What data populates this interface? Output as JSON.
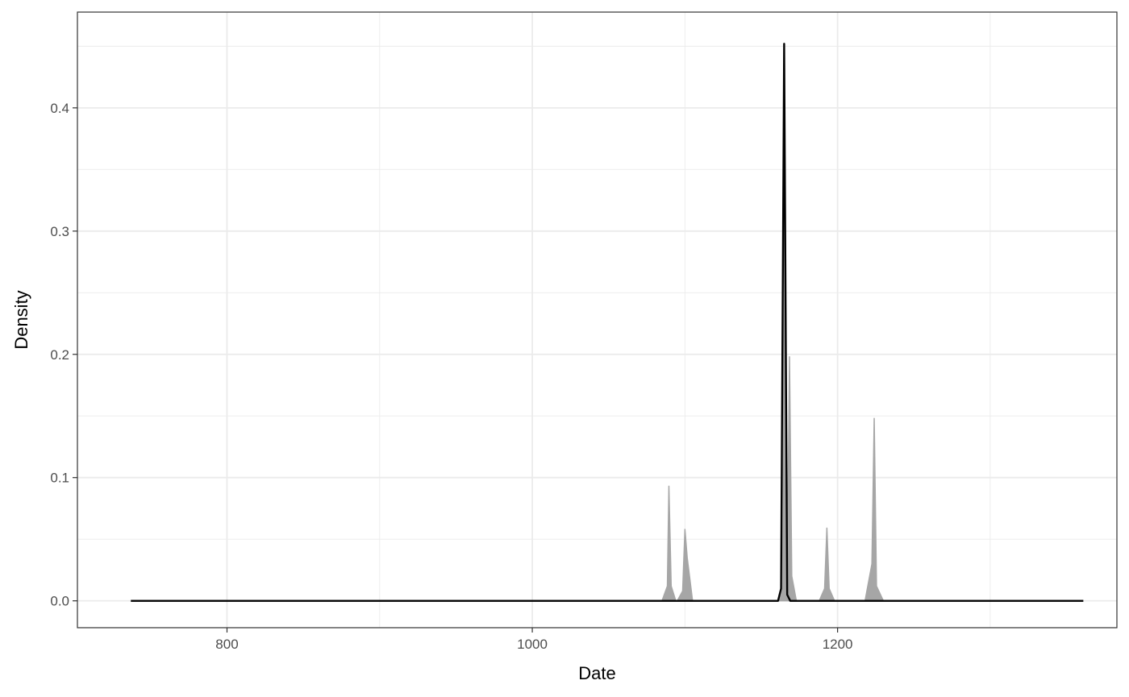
{
  "chart_data": {
    "type": "area",
    "title": "",
    "xlabel": "Date",
    "ylabel": "Density",
    "xlim": [
      702,
      1383
    ],
    "ylim": [
      -0.0218,
      0.4777
    ],
    "x_ticks": [
      800,
      1000,
      1200
    ],
    "y_ticks": [
      0.0,
      0.1,
      0.2,
      0.3,
      0.4
    ],
    "x_tick_labels": [
      "800",
      "1000",
      "1200"
    ],
    "y_tick_labels": [
      "0.0",
      "0.1",
      "0.2",
      "0.3",
      "0.4"
    ],
    "grid": true,
    "legend": "none",
    "colors": {
      "peaks": "#a6a6a6",
      "line": "#000000",
      "grid": "#ebebeb",
      "border": "#333333"
    },
    "peak_series": [
      {
        "x": [
          1085,
          1088.5,
          1089.5,
          1091,
          1094
        ],
        "y": [
          0,
          0.012,
          0.093,
          0.012,
          0
        ]
      },
      {
        "x": [
          1095,
          1098.5,
          1100,
          1101.5,
          1105
        ],
        "y": [
          0,
          0.008,
          0.058,
          0.035,
          0
        ]
      },
      {
        "x": [
          1161,
          1164,
          1165.5,
          1167,
          1168.5,
          1170,
          1173
        ],
        "y": [
          0,
          0.01,
          0.36,
          0.015,
          0.198,
          0.02,
          0
        ]
      },
      {
        "x": [
          1188,
          1191.5,
          1193,
          1194.5,
          1198
        ],
        "y": [
          0,
          0.01,
          0.059,
          0.01,
          0
        ]
      },
      {
        "x": [
          1218,
          1222.5,
          1224,
          1225.5,
          1230
        ],
        "y": [
          0,
          0.03,
          0.148,
          0.012,
          0
        ]
      }
    ],
    "line_series": {
      "x": [
        737,
        1161,
        1163,
        1165,
        1167,
        1169,
        1361
      ],
      "y": [
        0,
        0,
        0.01,
        0.452,
        0.005,
        0,
        0
      ]
    }
  }
}
